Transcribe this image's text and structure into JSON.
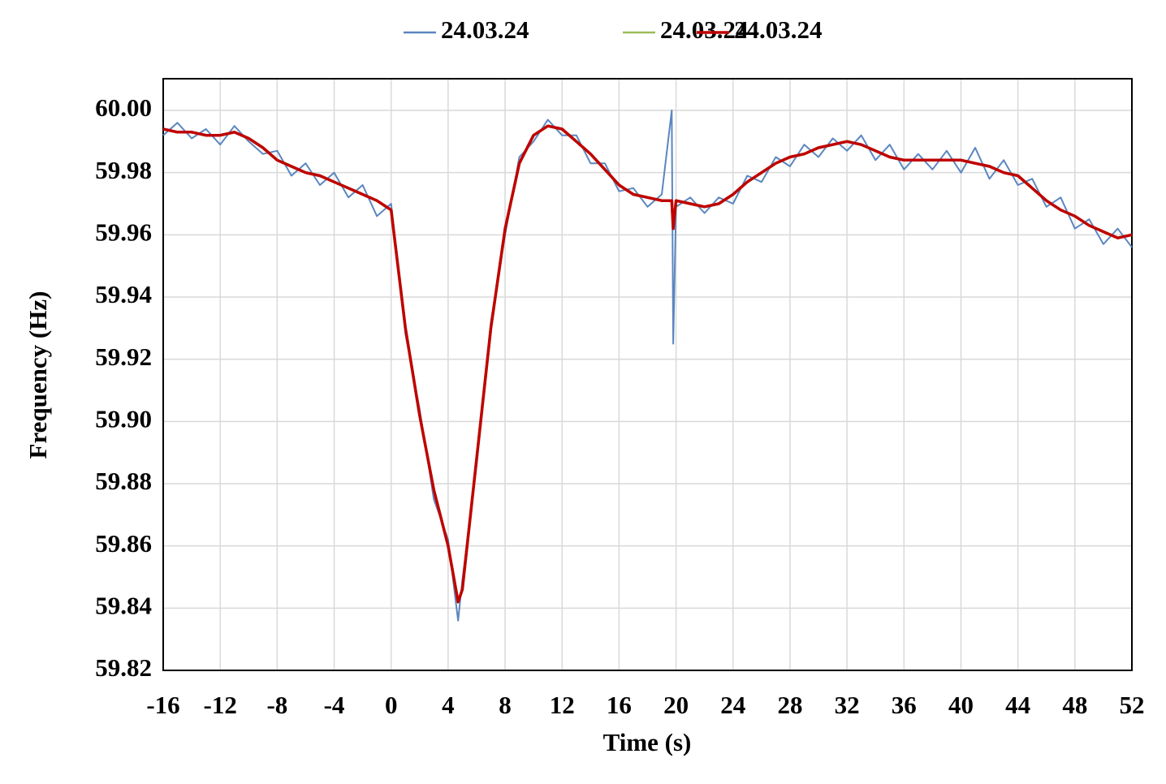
{
  "chart_data": {
    "type": "line",
    "legend": "top",
    "grid": true,
    "x_label": "Time (s)",
    "y_label": "Frequency (Hz)",
    "x": [
      -16,
      -15,
      -14,
      -13,
      -12,
      -11,
      -10,
      -9,
      -8,
      -7,
      -6,
      -5,
      -4,
      -3,
      -2,
      -1,
      0,
      1,
      2,
      3,
      4,
      4.7,
      5,
      6,
      7,
      8,
      9,
      10,
      11,
      12,
      13,
      14,
      15,
      16,
      17,
      18,
      19,
      19.7,
      19.8,
      20,
      21,
      22,
      23,
      24,
      25,
      26,
      27,
      28,
      29,
      30,
      31,
      32,
      33,
      34,
      35,
      36,
      37,
      38,
      39,
      40,
      41,
      42,
      43,
      44,
      45,
      46,
      47,
      48,
      49,
      50,
      51,
      52
    ],
    "series": [
      {
        "name": "24.03.24",
        "color": "#5b86c0",
        "values": [
          59.992,
          59.996,
          59.991,
          59.994,
          59.989,
          59.995,
          59.99,
          59.986,
          59.987,
          59.979,
          59.983,
          59.976,
          59.98,
          59.972,
          59.976,
          59.966,
          59.97,
          59.928,
          59.904,
          59.875,
          59.862,
          59.836,
          59.849,
          59.886,
          59.932,
          59.96,
          59.985,
          59.99,
          59.997,
          59.992,
          59.992,
          59.983,
          59.983,
          59.974,
          59.975,
          59.969,
          59.973,
          60.0,
          59.925,
          59.969,
          59.972,
          59.967,
          59.972,
          59.97,
          59.979,
          59.977,
          59.985,
          59.982,
          59.989,
          59.985,
          59.991,
          59.987,
          59.992,
          59.984,
          59.989,
          59.981,
          59.986,
          59.981,
          59.987,
          59.98,
          59.988,
          59.978,
          59.984,
          59.976,
          59.978,
          59.969,
          59.972,
          59.962,
          59.965,
          59.957,
          59.962,
          59.956
        ]
      },
      {
        "name": "24.03.24",
        "color": "#9bbb59",
        "values": [
          59.994,
          59.993,
          59.993,
          59.992,
          59.992,
          59.993,
          59.991,
          59.988,
          59.984,
          59.982,
          59.98,
          59.979,
          59.977,
          59.975,
          59.973,
          59.971,
          59.968,
          59.93,
          59.902,
          59.878,
          59.86,
          59.842,
          59.846,
          59.888,
          59.93,
          59.962,
          59.983,
          59.992,
          59.995,
          59.994,
          59.99,
          59.986,
          59.981,
          59.976,
          59.973,
          59.972,
          59.971,
          59.971,
          59.962,
          59.971,
          59.97,
          59.969,
          59.97,
          59.973,
          59.977,
          59.98,
          59.983,
          59.985,
          59.986,
          59.988,
          59.989,
          59.99,
          59.989,
          59.987,
          59.985,
          59.984,
          59.984,
          59.984,
          59.984,
          59.984,
          59.983,
          59.982,
          59.98,
          59.979,
          59.975,
          59.971,
          59.968,
          59.966,
          59.963,
          59.961,
          59.959,
          59.96
        ]
      },
      {
        "name": "24.03.24",
        "color": "#c00000",
        "values": [
          59.994,
          59.993,
          59.993,
          59.992,
          59.992,
          59.993,
          59.991,
          59.988,
          59.984,
          59.982,
          59.98,
          59.979,
          59.977,
          59.975,
          59.973,
          59.971,
          59.968,
          59.93,
          59.902,
          59.878,
          59.86,
          59.842,
          59.846,
          59.888,
          59.93,
          59.962,
          59.983,
          59.992,
          59.995,
          59.994,
          59.99,
          59.986,
          59.981,
          59.976,
          59.973,
          59.972,
          59.971,
          59.971,
          59.962,
          59.971,
          59.97,
          59.969,
          59.97,
          59.973,
          59.977,
          59.98,
          59.983,
          59.985,
          59.986,
          59.988,
          59.989,
          59.99,
          59.989,
          59.987,
          59.985,
          59.984,
          59.984,
          59.984,
          59.984,
          59.984,
          59.983,
          59.982,
          59.98,
          59.979,
          59.975,
          59.971,
          59.968,
          59.966,
          59.963,
          59.961,
          59.959,
          59.96
        ]
      }
    ],
    "xlim": [
      -16,
      52
    ],
    "xticks": [
      -16,
      -12,
      -8,
      -4,
      0,
      4,
      8,
      12,
      16,
      20,
      24,
      28,
      32,
      36,
      40,
      44,
      48,
      52
    ],
    "ylim": [
      59.82,
      60.0
    ],
    "yticks": [
      59.82,
      59.84,
      59.86,
      59.88,
      {
        "value": 59.9,
        "label": "59.90"
      },
      59.92,
      59.94,
      59.96,
      59.98,
      {
        "value": 60,
        "label": "60.00"
      }
    ]
  }
}
